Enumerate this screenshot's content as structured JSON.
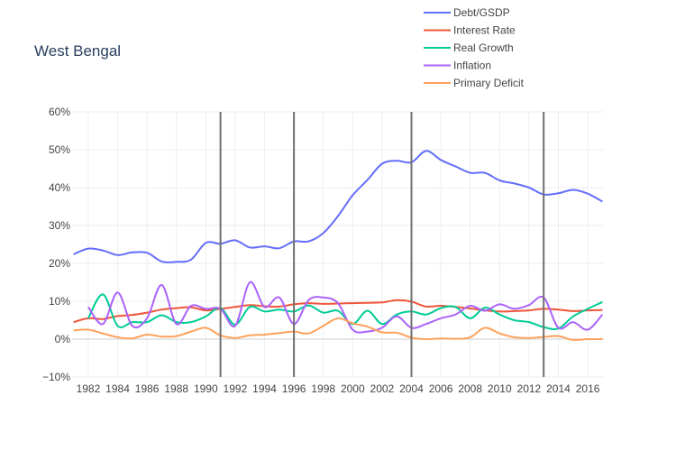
{
  "chart_data": {
    "type": "line",
    "title": "West Bengal",
    "xlim": [
      1980.9,
      2017.1
    ],
    "ylim": [
      -10,
      60
    ],
    "yticks": [
      -10,
      0,
      10,
      20,
      30,
      40,
      50,
      60
    ],
    "ytick_labels": [
      "−10%",
      "0%",
      "10%",
      "20%",
      "30%",
      "40%",
      "50%",
      "60%"
    ],
    "xticks": [
      1982,
      1984,
      1986,
      1988,
      1990,
      1992,
      1994,
      1996,
      1998,
      2000,
      2002,
      2004,
      2006,
      2008,
      2010,
      2012,
      2014,
      2016
    ],
    "xtick_labels": [
      "1982",
      "1984",
      "1986",
      "1988",
      "1990",
      "1992",
      "1994",
      "1996",
      "1998",
      "2000",
      "2002",
      "2004",
      "2006",
      "2008",
      "2010",
      "2012",
      "2014",
      "2016"
    ],
    "vlines": [
      1991,
      1996,
      2004,
      2013
    ],
    "grid": true,
    "legend_position": "top-right",
    "series": [
      {
        "name": "Debt/GSDP",
        "color": "#636efa",
        "x": [
          1981,
          1982,
          1983,
          1984,
          1985,
          1986,
          1987,
          1988,
          1989,
          1990,
          1991,
          1992,
          1993,
          1994,
          1995,
          1996,
          1997,
          1998,
          1999,
          2000,
          2001,
          2002,
          2003,
          2004,
          2005,
          2006,
          2007,
          2008,
          2009,
          2010,
          2011,
          2012,
          2013,
          2014,
          2015,
          2016,
          2017
        ],
        "y": [
          22.4,
          23.9,
          23.4,
          22.2,
          22.9,
          22.8,
          20.5,
          20.4,
          21.0,
          25.4,
          25.2,
          26.1,
          24.2,
          24.5,
          24.0,
          25.8,
          25.8,
          28.0,
          32.5,
          38.0,
          42.0,
          46.3,
          47.1,
          46.7,
          49.7,
          47.3,
          45.6,
          43.9,
          43.9,
          41.9,
          41.1,
          40.0,
          38.2,
          38.5,
          39.4,
          38.4,
          36.3
        ]
      },
      {
        "name": "Interest Rate",
        "color": "#ef553b",
        "x": [
          1981,
          1982,
          1983,
          1984,
          1985,
          1986,
          1987,
          1988,
          1989,
          1990,
          1991,
          1992,
          1993,
          1994,
          1995,
          1996,
          1997,
          1998,
          1999,
          2000,
          2001,
          2002,
          2003,
          2004,
          2005,
          2006,
          2007,
          2008,
          2009,
          2010,
          2011,
          2012,
          2013,
          2014,
          2015,
          2016,
          2017
        ],
        "y": [
          4.5,
          5.5,
          5.3,
          6.1,
          6.4,
          7.0,
          7.8,
          8.2,
          8.4,
          7.6,
          8.0,
          8.5,
          9.0,
          8.7,
          8.6,
          9.2,
          9.5,
          9.3,
          9.4,
          9.5,
          9.6,
          9.7,
          10.3,
          9.9,
          8.6,
          8.8,
          8.5,
          8.1,
          7.6,
          7.3,
          7.4,
          7.6,
          8.0,
          7.8,
          7.4,
          7.6,
          7.7
        ]
      },
      {
        "name": "Real Growth",
        "color": "#00cc96",
        "x": [
          1982,
          1983,
          1984,
          1985,
          1986,
          1987,
          1988,
          1989,
          1990,
          1991,
          1992,
          1993,
          1994,
          1995,
          1996,
          1997,
          1998,
          1999,
          2000,
          2001,
          2002,
          2003,
          2004,
          2005,
          2006,
          2007,
          2008,
          2009,
          2010,
          2011,
          2012,
          2013,
          2014,
          2015,
          2016,
          2017
        ],
        "y": [
          5.5,
          11.8,
          3.5,
          4.5,
          4.5,
          6.3,
          4.5,
          4.5,
          6.0,
          8.2,
          3.8,
          8.5,
          7.3,
          7.8,
          7.3,
          8.9,
          7.0,
          7.5,
          4.0,
          7.5,
          4.0,
          6.5,
          7.3,
          6.5,
          8.2,
          8.5,
          5.5,
          8.3,
          6.5,
          5.0,
          4.5,
          3.2,
          2.8,
          6.0,
          8.0,
          9.8
        ]
      },
      {
        "name": "Inflation",
        "color": "#ab63fa",
        "x": [
          1982,
          1983,
          1984,
          1985,
          1986,
          1987,
          1988,
          1989,
          1990,
          1991,
          1992,
          1993,
          1994,
          1995,
          1996,
          1997,
          1998,
          1999,
          2000,
          2001,
          2002,
          2003,
          2004,
          2005,
          2006,
          2007,
          2008,
          2009,
          2010,
          2011,
          2012,
          2013,
          2014,
          2015,
          2016,
          2017
        ],
        "y": [
          8.5,
          4.0,
          12.3,
          3.5,
          5.5,
          14.3,
          4.0,
          8.8,
          8.0,
          8.0,
          3.5,
          15.0,
          8.5,
          11.0,
          4.0,
          10.3,
          11.0,
          9.5,
          2.5,
          2.0,
          3.0,
          6.0,
          3.0,
          4.0,
          5.5,
          6.5,
          8.8,
          7.5,
          9.2,
          8.0,
          9.0,
          11.0,
          3.0,
          4.5,
          2.5,
          6.5
        ]
      },
      {
        "name": "Primary Deficit",
        "color": "#ffa15a",
        "x": [
          1981,
          1982,
          1983,
          1984,
          1985,
          1986,
          1987,
          1988,
          1989,
          1990,
          1991,
          1992,
          1993,
          1994,
          1995,
          1996,
          1997,
          1998,
          1999,
          2000,
          2001,
          2002,
          2003,
          2004,
          2005,
          2006,
          2007,
          2008,
          2009,
          2010,
          2011,
          2012,
          2013,
          2014,
          2015,
          2016,
          2017
        ],
        "y": [
          2.3,
          2.5,
          1.5,
          0.5,
          0.2,
          1.2,
          0.7,
          0.8,
          2.0,
          3.0,
          1.0,
          0.3,
          1.0,
          1.2,
          1.6,
          2.0,
          1.5,
          3.5,
          5.5,
          4.2,
          3.3,
          1.8,
          1.7,
          0.4,
          0.0,
          0.2,
          0.1,
          0.5,
          3.0,
          1.5,
          0.5,
          0.3,
          0.6,
          0.8,
          -0.2,
          0.0,
          0.0
        ]
      }
    ]
  }
}
